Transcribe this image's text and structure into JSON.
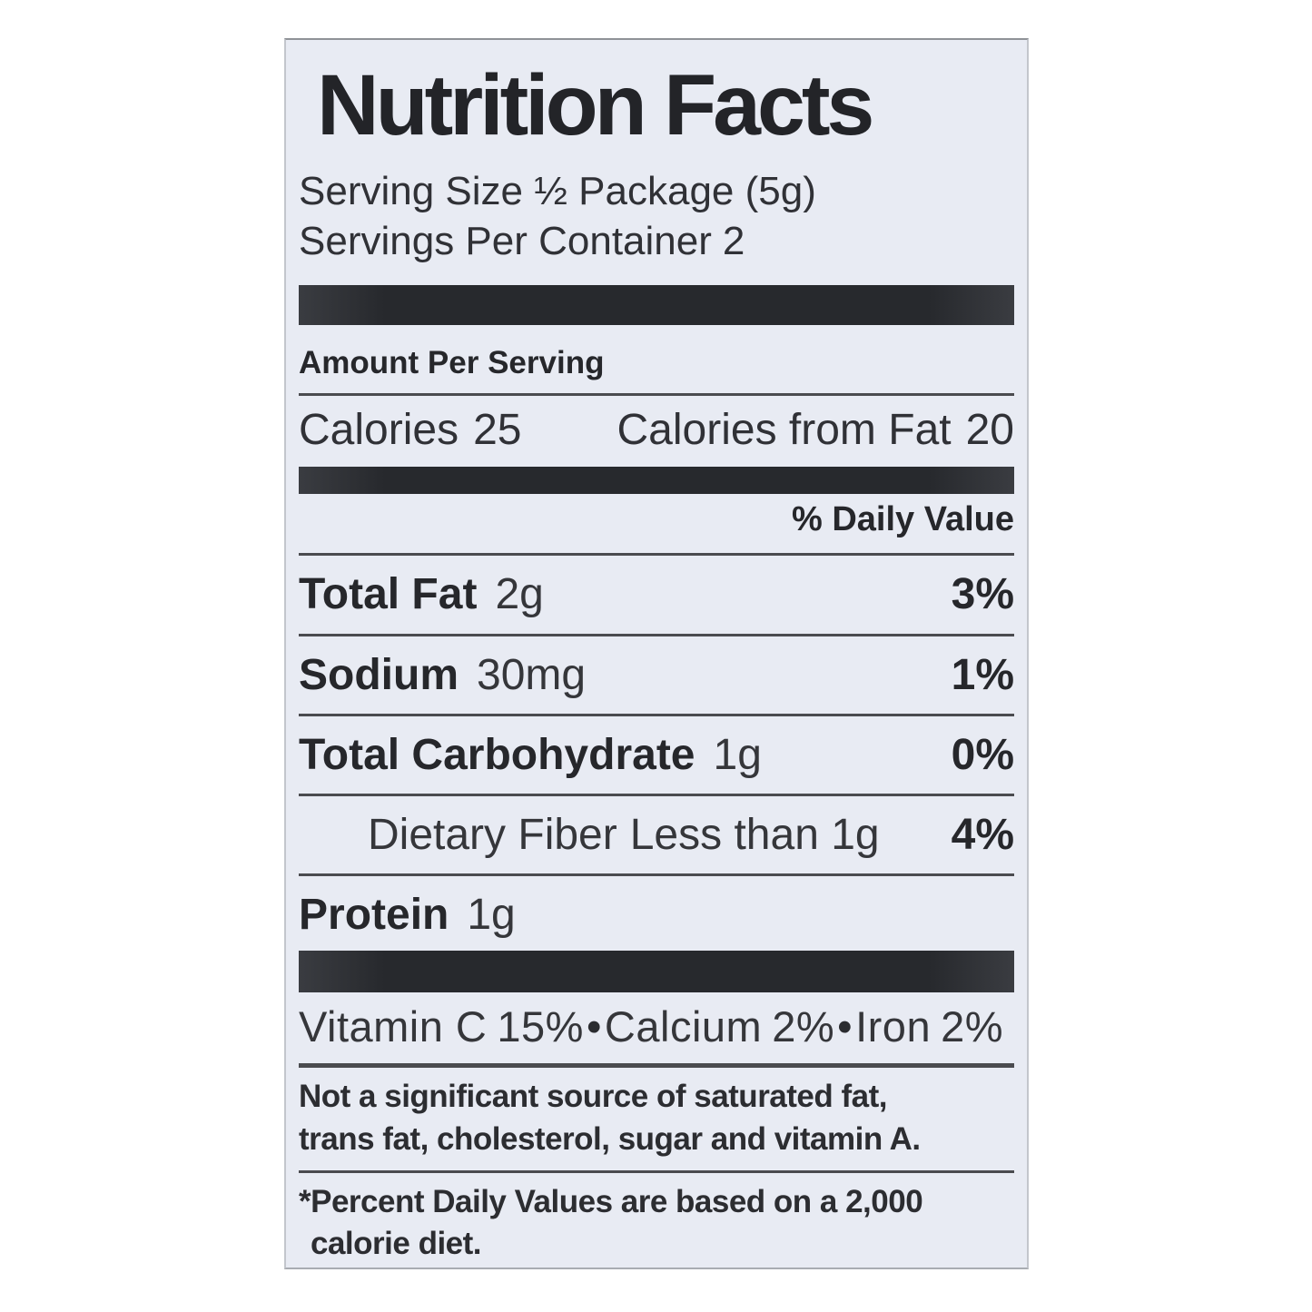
{
  "label": {
    "title": "Nutrition Facts",
    "serving_size": "Serving Size ½ Package (5g)",
    "servings_per_container": {
      "label": "Servings Per Container",
      "value": "2"
    },
    "amount_per_serving": "Amount Per Serving",
    "calories": {
      "label": "Calories",
      "value": "25",
      "from_fat_label": "Calories from Fat",
      "from_fat_value": "20"
    },
    "daily_value_header": "% Daily Value",
    "nutrients": [
      {
        "name": "Total Fat",
        "amount": "2g",
        "dv": "3%"
      },
      {
        "name": "Sodium",
        "amount": "30mg",
        "dv": "1%"
      },
      {
        "name": "Total Carbohydrate",
        "amount": "1g",
        "dv": "0%"
      },
      {
        "name": "Dietary Fiber",
        "amount": "Less than 1g",
        "dv": "4%"
      },
      {
        "name": "Protein",
        "amount": "1g",
        "dv": ""
      }
    ],
    "vitamin_separator": "•",
    "vitamins": [
      {
        "name": "Vitamin C",
        "value": "15%"
      },
      {
        "name": "Calcium",
        "value": "2%"
      },
      {
        "name": "Iron",
        "value": "2%"
      }
    ],
    "footnote_not_significant": [
      "Not a significant source of saturated fat,",
      "trans fat, cholesterol, sugar and vitamin A."
    ],
    "footnote_percent": [
      "*Percent Daily Values are based on a 2,000",
      "calorie diet."
    ]
  }
}
